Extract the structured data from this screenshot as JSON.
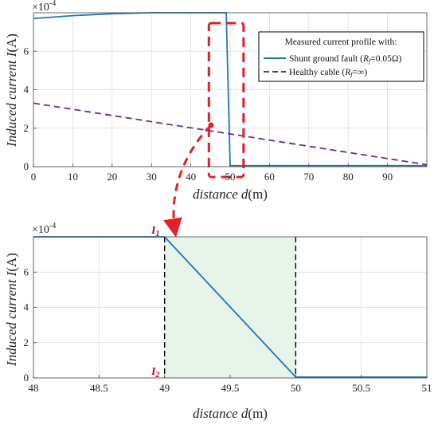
{
  "chart_data": [
    {
      "type": "line",
      "xlabel": "distance d(m)",
      "ylabel": "Induced current I(A)",
      "y_multiplier": "×10^-4",
      "xlim": [
        0,
        100
      ],
      "ylim": [
        0,
        8
      ],
      "xticks": [
        0,
        10,
        20,
        30,
        40,
        50,
        60,
        70,
        80,
        90
      ],
      "yticks": [
        0,
        2,
        4,
        6
      ],
      "grid": true,
      "legend": {
        "title": "Measured current profile with:",
        "position": "top-right",
        "entries": [
          "Shunt ground fault (Rf=0.05Ω)",
          "Healthy cable (Rf=∞)"
        ]
      },
      "series": [
        {
          "name": "Shunt ground fault (Rf=0.05Ω)",
          "color": "#1f77b4",
          "style": "solid",
          "x": [
            0,
            10,
            20,
            30,
            40,
            49,
            50,
            60,
            70,
            80,
            90,
            100
          ],
          "y": [
            7.7,
            7.85,
            7.95,
            8.0,
            8.0,
            8.0,
            0.05,
            0.05,
            0.05,
            0.05,
            0.05,
            0.05
          ]
        },
        {
          "name": "Healthy cable (Rf=∞)",
          "color": "#6a2c9e",
          "style": "dashed",
          "x": [
            0,
            100
          ],
          "y": [
            3.3,
            0.1
          ]
        }
      ],
      "highlight": {
        "x": [
          45,
          53
        ],
        "color": "#e0202a"
      }
    },
    {
      "type": "line",
      "xlabel": "distance d(m)",
      "ylabel": "Induced current I(A)",
      "y_multiplier": "×10^-4",
      "xlim": [
        48,
        51
      ],
      "ylim": [
        0,
        8
      ],
      "xticks": [
        48,
        48.5,
        49,
        49.5,
        50,
        50.5,
        51
      ],
      "yticks": [
        0,
        2,
        4,
        6
      ],
      "grid": true,
      "series": [
        {
          "color": "#1f77b4",
          "style": "solid",
          "x": [
            48,
            49,
            50,
            51
          ],
          "y": [
            8.0,
            8.0,
            0.05,
            0.05
          ]
        }
      ],
      "shaded_region": {
        "x": [
          49,
          50
        ],
        "color": "#e6f4ea"
      },
      "markers": [
        {
          "label": "I1",
          "x": 49,
          "y": 8.0
        },
        {
          "label": "I2",
          "x": 49,
          "y": 0
        }
      ]
    }
  ],
  "labels": {
    "top_xlabel_a": "distance ",
    "top_xlabel_b": "d",
    "top_xlabel_c": "(m)",
    "ylabel_a": "Induced current ",
    "ylabel_b": "I",
    "ylabel_c": "(A)",
    "exp_base": "×10",
    "exp_power": "-4",
    "legend_title": "Measured current profile with:",
    "legend_shunt": "Shunt ground fault (",
    "legend_shunt_rf": "R",
    "legend_shunt_sub": "f",
    "legend_shunt_val": "=0.05Ω)",
    "legend_healthy": "Healthy cable (",
    "legend_healthy_rf": "R",
    "legend_healthy_sub": "f",
    "legend_healthy_val": "=∞)",
    "i1": "I",
    "i1_sub": "1",
    "i2": "I",
    "i2_sub": "2"
  },
  "colors": {
    "fault_line": "#1f77b4",
    "healthy_line": "#6a2c9e",
    "highlight": "#e0202a",
    "shade": "#e6f4ea",
    "grid": "#d9d9d9"
  }
}
